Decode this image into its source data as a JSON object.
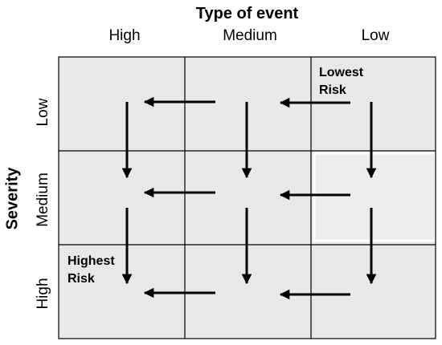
{
  "title": "Type of event",
  "columns": [
    "High",
    "Medium",
    "Low"
  ],
  "y_axis_label": "Severity",
  "rows": [
    "Low",
    "Medium",
    "High"
  ],
  "annotations": {
    "lowest": [
      "Lowest",
      "Risk"
    ],
    "highest": [
      "Highest",
      "Risk"
    ]
  },
  "colors": {
    "cell_fill": "#e8e8e8",
    "grid_line": "#000000",
    "arrow": "#000000"
  }
}
